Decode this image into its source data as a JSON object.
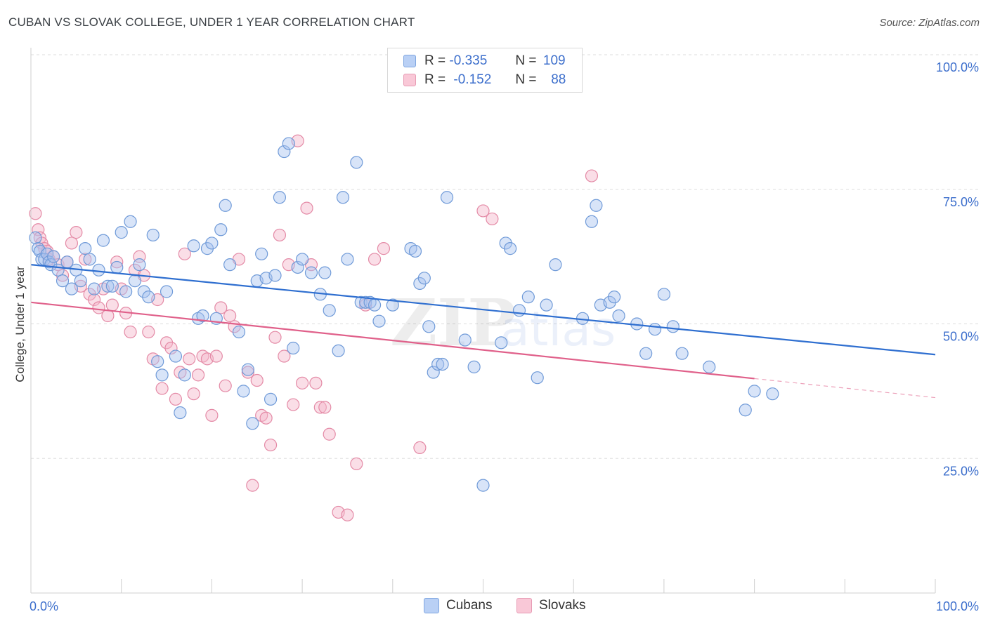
{
  "header": {
    "title": "CUBAN VS SLOVAK COLLEGE, UNDER 1 YEAR CORRELATION CHART",
    "source": "Source: ZipAtlas.com"
  },
  "watermark": {
    "zip": "ZIP",
    "atlas": "atlas"
  },
  "legend": {
    "rows": [
      {
        "r_label": "R =",
        "r_value": "-0.335",
        "n_label": "N =",
        "n_value": "109"
      },
      {
        "r_label": "R =",
        "r_value": "-0.152",
        "n_label": "N =",
        "n_value": "88"
      }
    ]
  },
  "bottom_legend": {
    "cubans": "Cubans",
    "slovaks": "Slovaks"
  },
  "colors": {
    "cubans_fill": "#a9c4ef",
    "cubans_stroke": "#6f9ad8",
    "cubans_line": "#2f6fd0",
    "slovaks_fill": "#f5b6c9",
    "slovaks_stroke": "#e48aa6",
    "slovaks_line": "#e0608a",
    "axis_text": "#3d6fcc",
    "grid": "#dddddd"
  },
  "chart_data": {
    "type": "scatter",
    "title": "CUBAN VS SLOVAK COLLEGE, UNDER 1 YEAR CORRELATION CHART",
    "xlabel": "",
    "ylabel": "College, Under 1 year",
    "xlim": [
      0,
      100
    ],
    "ylim": [
      0,
      100
    ],
    "x_tick_labels": [
      "0.0%",
      "100.0%"
    ],
    "y_ticks": [
      25,
      50,
      75,
      100
    ],
    "y_tick_labels": [
      "25.0%",
      "50.0%",
      "75.0%",
      "100.0%"
    ],
    "grid": true,
    "legend_position": "top-center",
    "series": [
      {
        "name": "Cubans",
        "r": -0.335,
        "n": 109,
        "trend": {
          "x": [
            0,
            100
          ],
          "y": [
            61.0,
            44.3
          ],
          "dashed_from": null
        },
        "points": [
          [
            0.5,
            66
          ],
          [
            0.8,
            64
          ],
          [
            1.0,
            63.5
          ],
          [
            1.2,
            62
          ],
          [
            1.5,
            62
          ],
          [
            1.8,
            63
          ],
          [
            2.0,
            61.5
          ],
          [
            2.2,
            61
          ],
          [
            2.5,
            62.5
          ],
          [
            3,
            60
          ],
          [
            3.5,
            58
          ],
          [
            4,
            61.5
          ],
          [
            4.5,
            56.5
          ],
          [
            5,
            60
          ],
          [
            5.5,
            58
          ],
          [
            6,
            64
          ],
          [
            6.5,
            62
          ],
          [
            7,
            56.5
          ],
          [
            7.5,
            60
          ],
          [
            8,
            65.5
          ],
          [
            8.5,
            57
          ],
          [
            9,
            57
          ],
          [
            9.5,
            60.5
          ],
          [
            10,
            67
          ],
          [
            10.5,
            56
          ],
          [
            11,
            69
          ],
          [
            11.5,
            58
          ],
          [
            12,
            61
          ],
          [
            12.5,
            56
          ],
          [
            13,
            55
          ],
          [
            13.5,
            66.5
          ],
          [
            14,
            43
          ],
          [
            14.5,
            40.5
          ],
          [
            15,
            56
          ],
          [
            16,
            44
          ],
          [
            16.5,
            33.5
          ],
          [
            17,
            40.5
          ],
          [
            18,
            64.5
          ],
          [
            18.5,
            51
          ],
          [
            19,
            51.5
          ],
          [
            19.5,
            64
          ],
          [
            20,
            65
          ],
          [
            20.5,
            51
          ],
          [
            21,
            67.5
          ],
          [
            21.5,
            72
          ],
          [
            22,
            61
          ],
          [
            23,
            48.5
          ],
          [
            23.5,
            37.5
          ],
          [
            24,
            41.5
          ],
          [
            24.5,
            31.5
          ],
          [
            25,
            58
          ],
          [
            25.5,
            63
          ],
          [
            26,
            58.5
          ],
          [
            26.5,
            36
          ],
          [
            27,
            59
          ],
          [
            27.5,
            73.5
          ],
          [
            28,
            82
          ],
          [
            28.5,
            83.5
          ],
          [
            29,
            45.5
          ],
          [
            29.5,
            60.5
          ],
          [
            30,
            62
          ],
          [
            31,
            59.5
          ],
          [
            32,
            55.5
          ],
          [
            32.5,
            59.5
          ],
          [
            33,
            52.5
          ],
          [
            34,
            45
          ],
          [
            34.5,
            73.5
          ],
          [
            35,
            62
          ],
          [
            36,
            80
          ],
          [
            36.5,
            54
          ],
          [
            37,
            54
          ],
          [
            37.5,
            54
          ],
          [
            38,
            53.5
          ],
          [
            38.5,
            50.5
          ],
          [
            40,
            53.5
          ],
          [
            42,
            64
          ],
          [
            42.5,
            63.5
          ],
          [
            43,
            57.5
          ],
          [
            43.5,
            58.5
          ],
          [
            44,
            49.5
          ],
          [
            44.5,
            41
          ],
          [
            45,
            42.5
          ],
          [
            45.5,
            42.5
          ],
          [
            46,
            73.5
          ],
          [
            48,
            47
          ],
          [
            49,
            42
          ],
          [
            50,
            20
          ],
          [
            52,
            46.5
          ],
          [
            52.5,
            65
          ],
          [
            53,
            64
          ],
          [
            54,
            52.5
          ],
          [
            55,
            55
          ],
          [
            56,
            40
          ],
          [
            57,
            53.5
          ],
          [
            58,
            61
          ],
          [
            61,
            51
          ],
          [
            62,
            69
          ],
          [
            62.5,
            72
          ],
          [
            63,
            53.5
          ],
          [
            64,
            54
          ],
          [
            64.5,
            55
          ],
          [
            65,
            51.5
          ],
          [
            67,
            50
          ],
          [
            68,
            44.5
          ],
          [
            69,
            49
          ],
          [
            70,
            55.5
          ],
          [
            71,
            49.5
          ],
          [
            72,
            44.5
          ],
          [
            75,
            42
          ],
          [
            79,
            34
          ],
          [
            80,
            37.5
          ],
          [
            82,
            37
          ]
        ]
      },
      {
        "name": "Slovaks",
        "r": -0.152,
        "n": 88,
        "trend": {
          "x": [
            0,
            100
          ],
          "y": [
            54.0,
            36.3
          ],
          "dashed_from": 80
        },
        "points": [
          [
            0.5,
            70.5
          ],
          [
            0.8,
            67.5
          ],
          [
            1.0,
            66
          ],
          [
            1.2,
            65
          ],
          [
            1.5,
            64
          ],
          [
            1.8,
            63.5
          ],
          [
            2.0,
            62
          ],
          [
            2.5,
            62.5
          ],
          [
            3,
            61
          ],
          [
            3.5,
            59
          ],
          [
            4,
            61.5
          ],
          [
            4.5,
            65
          ],
          [
            5,
            67
          ],
          [
            5.5,
            57
          ],
          [
            6,
            62
          ],
          [
            6.5,
            55.5
          ],
          [
            7,
            54.5
          ],
          [
            7.5,
            53
          ],
          [
            8,
            56.5
          ],
          [
            8.5,
            51.5
          ],
          [
            9,
            53.5
          ],
          [
            9.5,
            61.5
          ],
          [
            10,
            56.5
          ],
          [
            10.5,
            52
          ],
          [
            11,
            48.5
          ],
          [
            11.5,
            60
          ],
          [
            12,
            62.5
          ],
          [
            12.5,
            59
          ],
          [
            13,
            48.5
          ],
          [
            13.5,
            43.5
          ],
          [
            14,
            54.5
          ],
          [
            14.5,
            38
          ],
          [
            15,
            46.5
          ],
          [
            15.5,
            45.5
          ],
          [
            16,
            36
          ],
          [
            16.5,
            41
          ],
          [
            17,
            63
          ],
          [
            17.5,
            43.5
          ],
          [
            18,
            37
          ],
          [
            18.5,
            40.5
          ],
          [
            19,
            44
          ],
          [
            19.5,
            43.5
          ],
          [
            20,
            33
          ],
          [
            20.5,
            44
          ],
          [
            21,
            53
          ],
          [
            21.5,
            38.5
          ],
          [
            22,
            51.5
          ],
          [
            22.5,
            49.5
          ],
          [
            23,
            62
          ],
          [
            24,
            41
          ],
          [
            24.5,
            20
          ],
          [
            25,
            39.5
          ],
          [
            25.5,
            33
          ],
          [
            26,
            32.5
          ],
          [
            26.5,
            27.5
          ],
          [
            27,
            47.5
          ],
          [
            27.5,
            66.5
          ],
          [
            28,
            44
          ],
          [
            28.5,
            61
          ],
          [
            29,
            35
          ],
          [
            29.5,
            84
          ],
          [
            30,
            39
          ],
          [
            30.5,
            71.5
          ],
          [
            31,
            61
          ],
          [
            31.5,
            39
          ],
          [
            32,
            34.5
          ],
          [
            32.5,
            34.5
          ],
          [
            33,
            29.5
          ],
          [
            34,
            15
          ],
          [
            35,
            14.5
          ],
          [
            36,
            24
          ],
          [
            37,
            53.5
          ],
          [
            38,
            62
          ],
          [
            39,
            64
          ],
          [
            43,
            27
          ],
          [
            50,
            71
          ],
          [
            51,
            69.5
          ],
          [
            62,
            77.5
          ]
        ]
      }
    ]
  }
}
